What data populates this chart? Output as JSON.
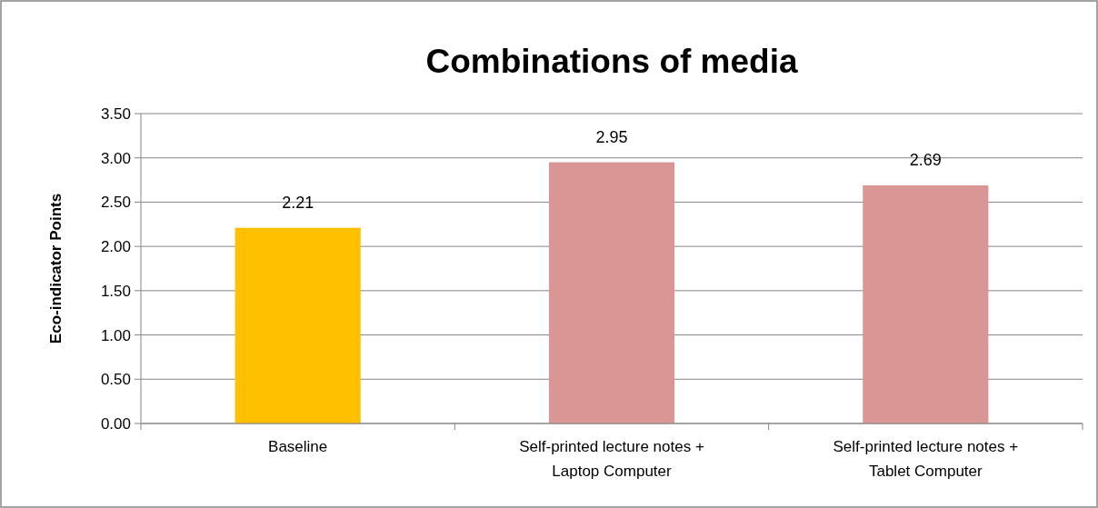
{
  "chart_data": {
    "type": "bar",
    "title": "Combinations of media",
    "ylabel": "Eco-indicator Points",
    "categories": [
      "Baseline",
      "Self-printed lecture notes + Laptop Computer",
      "Self-printed lecture notes + Tablet Computer"
    ],
    "values": [
      2.21,
      2.95,
      2.69
    ],
    "colors": [
      "#ffc000",
      "#d99694",
      "#d99694"
    ],
    "ylim": [
      0,
      3.5
    ],
    "yticks": [
      {
        "value": 0,
        "label": "0.00"
      },
      {
        "value": 0.5,
        "label": "0.50"
      },
      {
        "value": 1,
        "label": "1.00"
      },
      {
        "value": 1.5,
        "label": "1.50"
      },
      {
        "value": 2,
        "label": "2.00"
      },
      {
        "value": 2.5,
        "label": "2.50"
      },
      {
        "value": 3,
        "label": "3.00"
      },
      {
        "value": 3.5,
        "label": "3.50"
      }
    ],
    "grid": "y",
    "data_labels": true
  }
}
